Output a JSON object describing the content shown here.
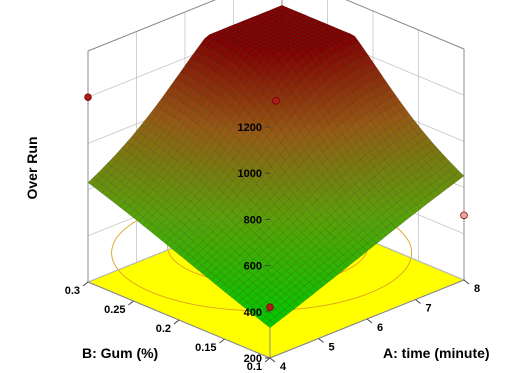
{
  "chart_data": {
    "type": "surface3d",
    "title": "",
    "zlabel": "Over Run",
    "xlabel": "A: time (minute)",
    "ylabel": "B: Gum (%)",
    "z_ticks": [
      "200",
      "400",
      "600",
      "800",
      "1000",
      "1200"
    ],
    "x_ticks": [
      "4",
      "5",
      "6",
      "7",
      "8"
    ],
    "y_ticks": [
      "0.1",
      "0.15",
      "0.2",
      "0.25",
      "0.3"
    ],
    "xlim": [
      4,
      8
    ],
    "ylim": [
      0.1,
      0.3
    ],
    "zlim": [
      200,
      1200
    ],
    "surface_corners": [
      {
        "time": 4,
        "gum": 0.1,
        "over_run": 330
      },
      {
        "time": 8,
        "gum": 0.1,
        "over_run": 640
      },
      {
        "time": 4,
        "gum": 0.3,
        "over_run": 620
      },
      {
        "time": 8,
        "gum": 0.3,
        "over_run": 1000
      }
    ],
    "surface_max": {
      "time": 7.2,
      "gum": 0.26,
      "over_run": 1060
    },
    "design_points": [
      {
        "time": 4,
        "gum": 0.3,
        "over_run": 1000
      },
      {
        "time": 8,
        "gum": 0.3,
        "over_run": 1120
      },
      {
        "time": 6,
        "gum": 0.2,
        "over_run": 980
      },
      {
        "time": 4,
        "gum": 0.1,
        "over_run": 420
      },
      {
        "time": 8,
        "gum": 0.1,
        "over_run": 480
      }
    ],
    "floor_color": "#ffff00",
    "surface_colors": {
      "low": "#00c800",
      "high": "#800000"
    }
  }
}
